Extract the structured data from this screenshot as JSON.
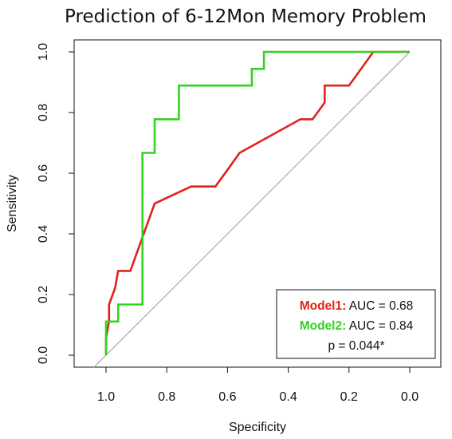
{
  "chart_data": {
    "type": "line",
    "title": "Prediction of 6-12Mon Memory Problem",
    "xlabel": "Specificity",
    "ylabel": "Sensitivity",
    "xlim": [
      1.0,
      0.0
    ],
    "ylim": [
      0.0,
      1.0
    ],
    "x_ticks": [
      "1.0",
      "0.8",
      "0.6",
      "0.4",
      "0.2",
      "0.0"
    ],
    "y_ticks": [
      "0.0",
      "0.2",
      "0.4",
      "0.6",
      "0.8",
      "1.0"
    ],
    "grid": false,
    "legend_position": "bottom-right",
    "reference_line": {
      "x": [
        1.0,
        0.0
      ],
      "y": [
        0.0,
        1.0
      ],
      "color": "#9a9a9a"
    },
    "series": [
      {
        "name": "Model1",
        "color": "#e0231b",
        "x": [
          1.0,
          1.0,
          0.99,
          0.99,
          0.97,
          0.96,
          0.96,
          0.92,
          0.84,
          0.72,
          0.64,
          0.6,
          0.56,
          0.36,
          0.32,
          0.28,
          0.28,
          0.2,
          0.12,
          0.0
        ],
        "y": [
          0.0,
          0.056,
          0.111,
          0.167,
          0.222,
          0.278,
          0.278,
          0.278,
          0.5,
          0.556,
          0.556,
          0.611,
          0.667,
          0.778,
          0.778,
          0.833,
          0.889,
          0.889,
          1.0,
          1.0
        ]
      },
      {
        "name": "Model2",
        "color": "#33d41f",
        "x": [
          1.0,
          1.0,
          0.96,
          0.96,
          0.88,
          0.88,
          0.84,
          0.84,
          0.76,
          0.76,
          0.52,
          0.52,
          0.48,
          0.48,
          0.12,
          0.0
        ],
        "y": [
          0.0,
          0.111,
          0.111,
          0.167,
          0.167,
          0.667,
          0.667,
          0.778,
          0.778,
          0.889,
          0.889,
          0.944,
          0.944,
          1.0,
          1.0,
          1.0
        ]
      }
    ],
    "legend": {
      "entries": [
        {
          "label": "Model1:",
          "text": "AUC = 0.68",
          "color": "#e0231b"
        },
        {
          "label": "Model2:",
          "text": "AUC = 0.84",
          "color": "#33d41f"
        }
      ],
      "note": "p = 0.044*"
    }
  }
}
